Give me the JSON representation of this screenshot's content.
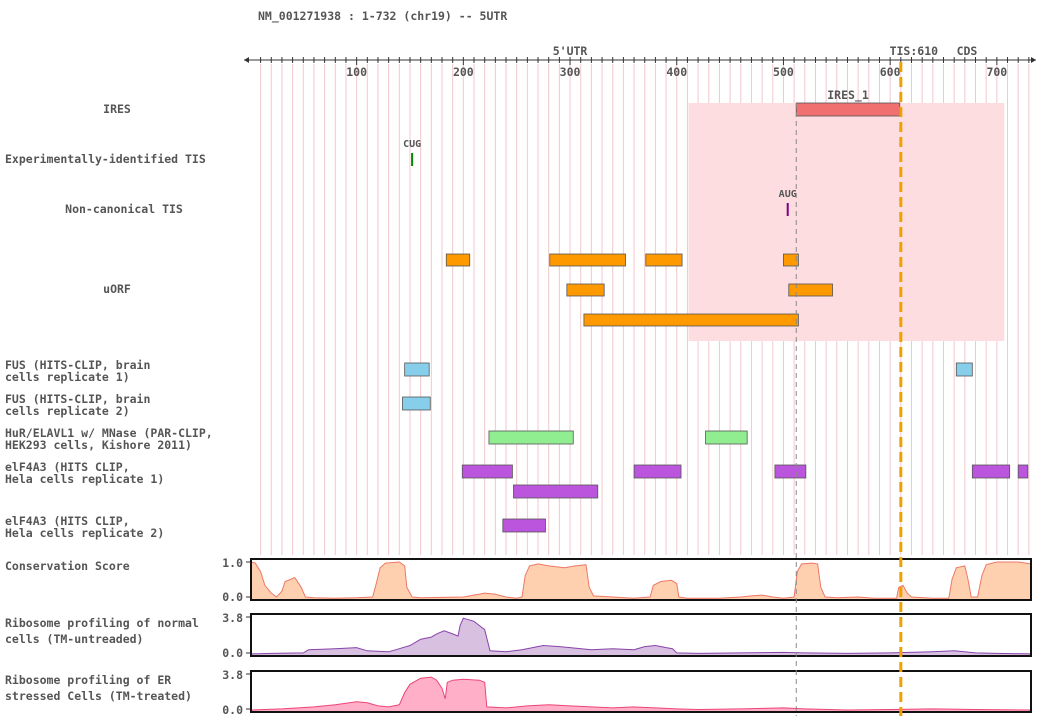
{
  "header": {
    "title": "NM_001271938 : 1-732 (chr19) -- 5UTR"
  },
  "axis": {
    "min": 1,
    "max": 732,
    "ticks": [
      100,
      200,
      300,
      400,
      500,
      600,
      700
    ],
    "region_label": "5'UTR",
    "region_label_pos": 300,
    "tis_label": "TIS:610",
    "tis_pos": 610,
    "cds_label": "CDS",
    "cds_label_pos": 672,
    "marker_pos": 512
  },
  "colors": {
    "ires": "#f07070",
    "ires_shade": "#fddde0",
    "uorf": "#ff9900",
    "fus": "#87ceeb",
    "hur": "#90ee90",
    "elf4a3": "#bb55dd",
    "tis": "#f0a000",
    "cds": "#008800",
    "region": "#dd0000",
    "conservation": "#ffd0b0",
    "ribo_normal": "#d8c0e0",
    "ribo_er": "#ffb0c8"
  },
  "tracks": [
    {
      "id": "ires",
      "label": [
        "IRES"
      ],
      "align": "center",
      "features": [
        {
          "start": 512,
          "end": 609,
          "label": "IRES_1",
          "color": "#f07070"
        }
      ]
    },
    {
      "id": "exp_tis",
      "label": [
        "Experimentally-identified TIS"
      ],
      "align": "left",
      "markers": [
        {
          "pos": 152,
          "label": "CUG",
          "color": "#008800"
        }
      ]
    },
    {
      "id": "noncanonical_tis",
      "label": [
        "Non-canonical TIS"
      ],
      "align": "center",
      "markers": [
        {
          "pos": 504,
          "label": "AUG",
          "color": "#800080"
        }
      ]
    },
    {
      "id": "uorf",
      "label": [
        "uORF"
      ],
      "align": "center",
      "features": [
        {
          "start": 184,
          "end": 206,
          "row": 0,
          "color": "#ff9900"
        },
        {
          "start": 281,
          "end": 352,
          "row": 0,
          "color": "#ff9900"
        },
        {
          "start": 371,
          "end": 405,
          "row": 0,
          "color": "#ff9900"
        },
        {
          "start": 500,
          "end": 514,
          "row": 0,
          "color": "#ff9900"
        },
        {
          "start": 297,
          "end": 332,
          "row": 1,
          "color": "#ff9900"
        },
        {
          "start": 505,
          "end": 546,
          "row": 1,
          "color": "#ff9900"
        },
        {
          "start": 313,
          "end": 514,
          "row": 2,
          "color": "#ff9900"
        }
      ]
    },
    {
      "id": "fus1",
      "label": [
        "FUS (HITS-CLIP, brain",
        "cells replicate 1)"
      ],
      "align": "left",
      "features": [
        {
          "start": 145,
          "end": 168,
          "row": 0,
          "color": "#87ceeb"
        },
        {
          "start": 662,
          "end": 677,
          "row": 0,
          "color": "#87ceeb"
        }
      ]
    },
    {
      "id": "fus2",
      "label": [
        "FUS (HITS-CLIP, brain",
        "cells replicate 2)"
      ],
      "align": "left",
      "features": [
        {
          "start": 143,
          "end": 169,
          "row": 0,
          "color": "#87ceeb"
        }
      ]
    },
    {
      "id": "hur",
      "label": [
        "HuR/ELAVL1 w/ MNase (PAR-CLIP,",
        "HEK293 cells, Kishore 2011)"
      ],
      "align": "left",
      "features": [
        {
          "start": 224,
          "end": 303,
          "row": 0,
          "color": "#90ee90"
        },
        {
          "start": 427,
          "end": 466,
          "row": 0,
          "color": "#90ee90"
        }
      ]
    },
    {
      "id": "elf4a3_1",
      "label": [
        "elF4A3 (HITS CLIP,",
        "Hela cells replicate 1)"
      ],
      "align": "left",
      "features": [
        {
          "start": 199,
          "end": 246,
          "row": 0,
          "color": "#bb55dd"
        },
        {
          "start": 360,
          "end": 404,
          "row": 0,
          "color": "#bb55dd"
        },
        {
          "start": 492,
          "end": 521,
          "row": 0,
          "color": "#bb55dd"
        },
        {
          "start": 677,
          "end": 712,
          "row": 0,
          "color": "#bb55dd"
        },
        {
          "start": 720,
          "end": 729,
          "row": 0,
          "color": "#bb55dd"
        },
        {
          "start": 247,
          "end": 326,
          "row": 1,
          "color": "#bb55dd"
        }
      ]
    },
    {
      "id": "elf4a3_2",
      "label": [
        "elF4A3 (HITS CLIP,",
        "Hela cells replicate 2)"
      ],
      "align": "left",
      "features": [
        {
          "start": 237,
          "end": 277,
          "row": 0,
          "color": "#bb55dd"
        }
      ]
    }
  ],
  "ires_shade": {
    "start": 411,
    "end": 707
  },
  "plots": [
    {
      "id": "conservation",
      "label": [
        "Conservation Score"
      ],
      "ymax_label": "1.0",
      "ymin_label": "0.0",
      "ymax": 1.0,
      "fill": "#ffd0b0",
      "stroke": "#ee7766",
      "points": [
        [
          1,
          0.95
        ],
        [
          5,
          0.92
        ],
        [
          10,
          0.7
        ],
        [
          14,
          0.35
        ],
        [
          20,
          0.15
        ],
        [
          25,
          0.05
        ],
        [
          30,
          0.2
        ],
        [
          33,
          0.45
        ],
        [
          38,
          0.5
        ],
        [
          42,
          0.55
        ],
        [
          48,
          0.3
        ],
        [
          52,
          0.05
        ],
        [
          60,
          0.03
        ],
        [
          80,
          0.02
        ],
        [
          100,
          0.03
        ],
        [
          115,
          0.05
        ],
        [
          118,
          0.35
        ],
        [
          122,
          0.8
        ],
        [
          127,
          0.92
        ],
        [
          140,
          0.95
        ],
        [
          145,
          0.85
        ],
        [
          147,
          0.3
        ],
        [
          152,
          0.05
        ],
        [
          160,
          0.03
        ],
        [
          200,
          0.05
        ],
        [
          210,
          0.1
        ],
        [
          220,
          0.15
        ],
        [
          230,
          0.12
        ],
        [
          240,
          0.05
        ],
        [
          250,
          0.02
        ],
        [
          255,
          0.05
        ],
        [
          258,
          0.6
        ],
        [
          262,
          0.85
        ],
        [
          270,
          0.9
        ],
        [
          280,
          0.85
        ],
        [
          295,
          0.8
        ],
        [
          305,
          0.85
        ],
        [
          315,
          0.88
        ],
        [
          318,
          0.3
        ],
        [
          322,
          0.08
        ],
        [
          340,
          0.05
        ],
        [
          360,
          0.02
        ],
        [
          375,
          0.05
        ],
        [
          378,
          0.35
        ],
        [
          385,
          0.45
        ],
        [
          395,
          0.48
        ],
        [
          400,
          0.4
        ],
        [
          402,
          0.05
        ],
        [
          410,
          0.02
        ],
        [
          440,
          0.02
        ],
        [
          460,
          0.05
        ],
        [
          470,
          0.08
        ],
        [
          480,
          0.1
        ],
        [
          490,
          0.05
        ],
        [
          500,
          0.02
        ],
        [
          510,
          0.05
        ],
        [
          513,
          0.7
        ],
        [
          517,
          0.9
        ],
        [
          527,
          0.92
        ],
        [
          532,
          0.9
        ],
        [
          535,
          0.3
        ],
        [
          539,
          0.05
        ],
        [
          550,
          0.03
        ],
        [
          570,
          0.05
        ],
        [
          585,
          0.02
        ],
        [
          606,
          0.02
        ],
        [
          608,
          0.3
        ],
        [
          612,
          0.35
        ],
        [
          616,
          0.15
        ],
        [
          620,
          0.05
        ],
        [
          640,
          0.02
        ],
        [
          655,
          0.02
        ],
        [
          658,
          0.5
        ],
        [
          662,
          0.8
        ],
        [
          670,
          0.85
        ],
        [
          673,
          0.5
        ],
        [
          676,
          0.05
        ],
        [
          682,
          0.05
        ],
        [
          686,
          0.6
        ],
        [
          690,
          0.88
        ],
        [
          700,
          0.95
        ],
        [
          720,
          0.95
        ],
        [
          732,
          0.9
        ]
      ]
    },
    {
      "id": "ribo_normal",
      "label": [
        "Ribosome profiling of normal",
        "cells (TM-untreaded)"
      ],
      "ymax_label": "3.8",
      "ymin_label": "0.0",
      "ymax": 3.8,
      "fill": "#d8c0e0",
      "stroke": "#8844aa",
      "points": [
        [
          1,
          0.1
        ],
        [
          20,
          0.15
        ],
        [
          50,
          0.2
        ],
        [
          55,
          0.5
        ],
        [
          80,
          0.6
        ],
        [
          100,
          0.7
        ],
        [
          110,
          0.4
        ],
        [
          130,
          0.3
        ],
        [
          140,
          0.6
        ],
        [
          150,
          0.9
        ],
        [
          155,
          1.2
        ],
        [
          160,
          1.5
        ],
        [
          170,
          1.7
        ],
        [
          175,
          2.0
        ],
        [
          182,
          2.3
        ],
        [
          190,
          2.0
        ],
        [
          195,
          1.8
        ],
        [
          197,
          2.8
        ],
        [
          200,
          3.5
        ],
        [
          210,
          3.2
        ],
        [
          215,
          2.8
        ],
        [
          220,
          2.4
        ],
        [
          225,
          0.4
        ],
        [
          240,
          0.3
        ],
        [
          255,
          0.5
        ],
        [
          265,
          0.7
        ],
        [
          275,
          0.9
        ],
        [
          290,
          0.8
        ],
        [
          300,
          0.7
        ],
        [
          320,
          0.5
        ],
        [
          340,
          0.6
        ],
        [
          360,
          0.5
        ],
        [
          370,
          0.8
        ],
        [
          380,
          0.9
        ],
        [
          390,
          0.7
        ],
        [
          396,
          0.6
        ],
        [
          400,
          0.2
        ],
        [
          420,
          0.15
        ],
        [
          460,
          0.2
        ],
        [
          500,
          0.25
        ],
        [
          520,
          0.2
        ],
        [
          560,
          0.15
        ],
        [
          600,
          0.2
        ],
        [
          640,
          0.3
        ],
        [
          660,
          0.4
        ],
        [
          680,
          0.2
        ],
        [
          700,
          0.15
        ],
        [
          732,
          0.1
        ]
      ]
    },
    {
      "id": "ribo_er",
      "label": [
        "Ribosome profiling of ER",
        "stressed Cells (TM-treated)"
      ],
      "ymax_label": "3.8",
      "ymin_label": "0.0",
      "ymax": 3.8,
      "fill": "#ffb0c8",
      "stroke": "#ee4477",
      "points": [
        [
          1,
          0.1
        ],
        [
          30,
          0.2
        ],
        [
          60,
          0.4
        ],
        [
          80,
          0.6
        ],
        [
          100,
          0.9
        ],
        [
          110,
          0.8
        ],
        [
          120,
          0.5
        ],
        [
          130,
          0.4
        ],
        [
          140,
          0.6
        ],
        [
          145,
          1.8
        ],
        [
          150,
          2.6
        ],
        [
          160,
          3.2
        ],
        [
          170,
          3.3
        ],
        [
          175,
          3.0
        ],
        [
          180,
          2.2
        ],
        [
          183,
          1.2
        ],
        [
          185,
          2.8
        ],
        [
          190,
          3.0
        ],
        [
          200,
          3.1
        ],
        [
          215,
          3.0
        ],
        [
          220,
          2.8
        ],
        [
          222,
          0.4
        ],
        [
          240,
          0.3
        ],
        [
          260,
          0.5
        ],
        [
          280,
          0.6
        ],
        [
          300,
          0.5
        ],
        [
          320,
          0.4
        ],
        [
          340,
          0.3
        ],
        [
          360,
          0.4
        ],
        [
          380,
          0.3
        ],
        [
          400,
          0.2
        ],
        [
          420,
          0.15
        ],
        [
          460,
          0.2
        ],
        [
          500,
          0.3
        ],
        [
          520,
          0.2
        ],
        [
          560,
          0.1
        ],
        [
          600,
          0.15
        ],
        [
          640,
          0.2
        ],
        [
          680,
          0.15
        ],
        [
          732,
          0.1
        ]
      ]
    }
  ]
}
